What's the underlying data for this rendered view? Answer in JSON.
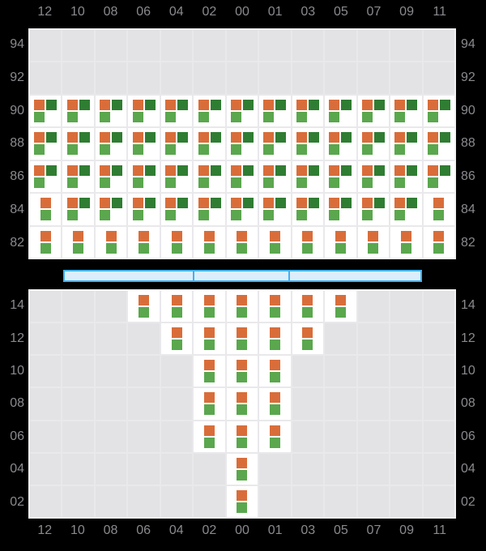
{
  "colors": {
    "background": "#000000",
    "panel_gridline": "#e9e9ec",
    "panel_border": "#f2f2f4",
    "empty_cell": "#e3e3e6",
    "filled_cell": "#ffffff",
    "axis_label": "#8a8a8f",
    "orange": "#d96d3a",
    "dark_green": "#2f7d32",
    "light_green": "#5aa74e",
    "slider_border": "#41b1ef",
    "slider_fill": "#dceefb"
  },
  "chart_data": {
    "type": "heatmap",
    "title": "",
    "x_tick_labels": [
      "12",
      "10",
      "08",
      "06",
      "04",
      "02",
      "00",
      "01",
      "03",
      "05",
      "07",
      "09",
      "11"
    ],
    "x_axis_shown": [
      "top",
      "bottom"
    ],
    "cell_legend": {
      "3": [
        "orange top-left",
        "dark_green top-right",
        "light_green bottom-left"
      ],
      "2": [
        "orange top",
        "light_green bottom"
      ]
    },
    "panels": [
      {
        "id": "top",
        "y_tick_labels": [
          "94",
          "92",
          "90",
          "88",
          "86",
          "84",
          "82"
        ],
        "y_axis_sides": [
          "left",
          "right"
        ],
        "cells": [
          [
            0,
            0,
            0,
            0,
            0,
            0,
            0,
            0,
            0,
            0,
            0,
            0,
            0
          ],
          [
            0,
            0,
            0,
            0,
            0,
            0,
            0,
            0,
            0,
            0,
            0,
            0,
            0
          ],
          [
            3,
            3,
            3,
            3,
            3,
            3,
            3,
            3,
            3,
            3,
            3,
            3,
            3
          ],
          [
            3,
            3,
            3,
            3,
            3,
            3,
            3,
            3,
            3,
            3,
            3,
            3,
            3
          ],
          [
            3,
            3,
            3,
            3,
            3,
            3,
            3,
            3,
            3,
            3,
            3,
            3,
            3
          ],
          [
            2,
            3,
            3,
            3,
            3,
            3,
            3,
            3,
            3,
            3,
            3,
            3,
            2
          ],
          [
            2,
            2,
            2,
            2,
            2,
            2,
            2,
            2,
            2,
            2,
            2,
            2,
            2
          ]
        ]
      },
      {
        "id": "bottom",
        "y_tick_labels": [
          "14",
          "12",
          "10",
          "08",
          "06",
          "04",
          "02"
        ],
        "y_axis_sides": [
          "left",
          "right"
        ],
        "cells": [
          [
            0,
            0,
            0,
            2,
            2,
            2,
            2,
            2,
            2,
            2,
            0,
            0,
            0
          ],
          [
            0,
            0,
            0,
            0,
            2,
            2,
            2,
            2,
            2,
            0,
            0,
            0,
            0
          ],
          [
            0,
            0,
            0,
            0,
            0,
            2,
            2,
            2,
            0,
            0,
            0,
            0,
            0
          ],
          [
            0,
            0,
            0,
            0,
            0,
            2,
            2,
            2,
            0,
            0,
            0,
            0,
            0
          ],
          [
            0,
            0,
            0,
            0,
            0,
            2,
            2,
            2,
            0,
            0,
            0,
            0,
            0
          ],
          [
            0,
            0,
            0,
            0,
            0,
            0,
            2,
            0,
            0,
            0,
            0,
            0,
            0
          ],
          [
            0,
            0,
            0,
            0,
            0,
            0,
            2,
            0,
            0,
            0,
            0,
            0,
            0
          ]
        ]
      }
    ]
  },
  "range_slider": {
    "segments": 3,
    "divider_pcts": [
      36.1,
      62.8
    ]
  }
}
